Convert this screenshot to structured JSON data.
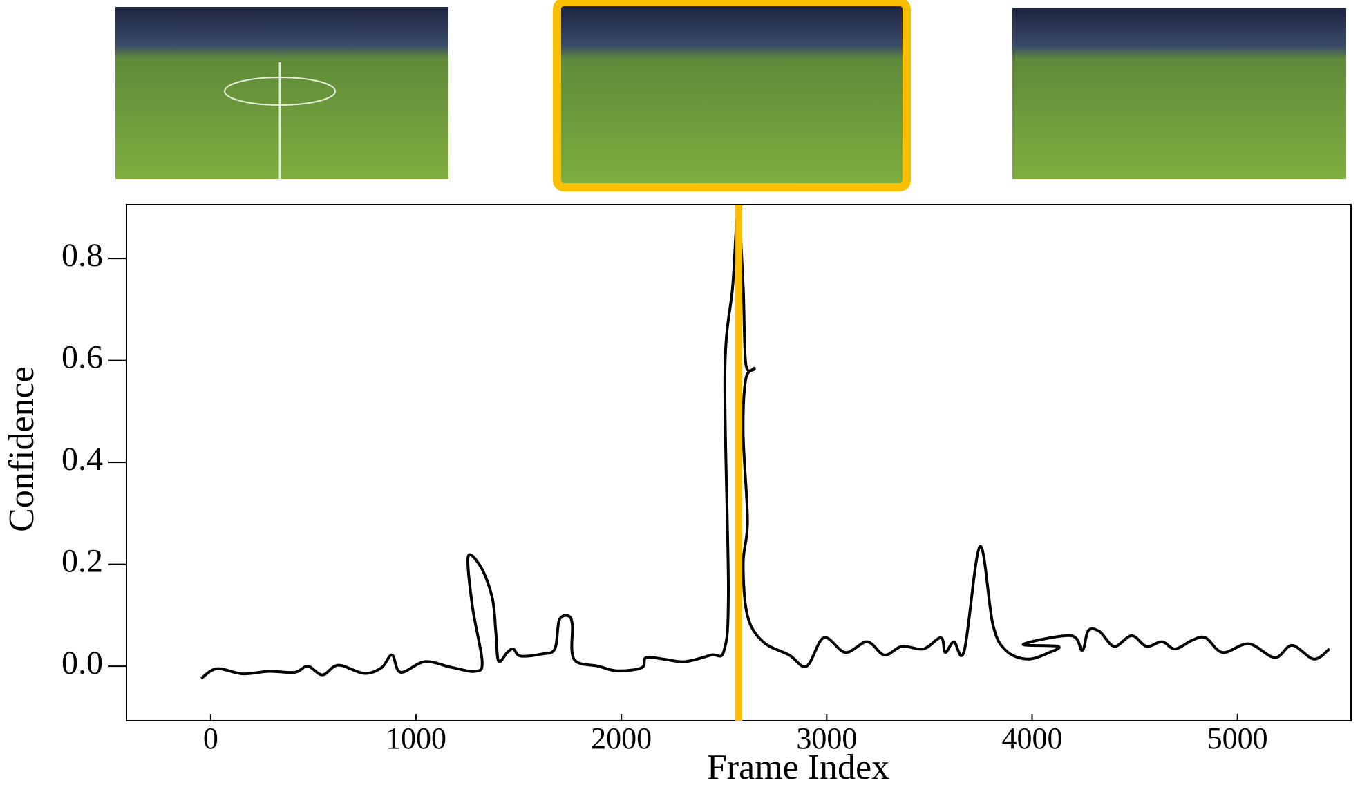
{
  "chart_data": {
    "type": "line",
    "x_label": "Frame Index",
    "y_label": "Confidence",
    "xlim": [
      -410,
      5553
    ],
    "ylim": [
      -0.107,
      0.906
    ],
    "xticks": [
      0,
      1000,
      2000,
      3000,
      4000,
      5000
    ],
    "yticks": [
      {
        "value": 0,
        "label": "0.0"
      },
      0.2,
      0.4,
      0.6,
      0.8
    ],
    "highlight_x": 2572,
    "highlight_color": "#fbbf00",
    "series": [
      {
        "name": "Confidence",
        "color": "#000000",
        "x": [
          -46,
          30,
          156,
          283,
          410,
          473,
          545,
          621,
          747,
          832,
          883,
          925,
          1043,
          1170,
          1288,
          1322,
          1275,
          1254,
          1318,
          1372,
          1389,
          1402,
          1444,
          1474,
          1508,
          1613,
          1676,
          1697,
          1740,
          1761,
          1769,
          1888,
          1981,
          2099,
          2120,
          2204,
          2310,
          2437,
          2500,
          2521,
          2504,
          2542,
          2568,
          2593,
          2606,
          2648,
          2606,
          2593,
          2614,
          2593,
          2614,
          2690,
          2817,
          2902,
          2986,
          3091,
          3197,
          3281,
          3366,
          3471,
          3556,
          3577,
          3619,
          3670,
          3746,
          3809,
          3872,
          3978,
          4084,
          4126,
          3957,
          4189,
          4244,
          4274,
          4329,
          4400,
          4485,
          4557,
          4633,
          4696,
          4780,
          4844,
          4928,
          5055,
          5182,
          5266,
          5372,
          5448
        ],
        "values": [
          -0.024,
          -0.005,
          -0.015,
          -0.01,
          -0.012,
          0,
          -0.017,
          0.002,
          -0.014,
          -0.003,
          0.022,
          -0.012,
          0.009,
          -0.002,
          -0.01,
          0.01,
          0.116,
          0.215,
          0.193,
          0.133,
          0.065,
          0.01,
          0.027,
          0.034,
          0.02,
          0.024,
          0.034,
          0.09,
          0.099,
          0.082,
          0.014,
          0,
          -0.009,
          -0.003,
          0.017,
          0.014,
          0.009,
          0.022,
          0.031,
          0.15,
          0.576,
          0.746,
          0.891,
          0.746,
          0.593,
          0.584,
          0.564,
          0.457,
          0.286,
          0.201,
          0.099,
          0.048,
          0.022,
          0,
          0.056,
          0.027,
          0.048,
          0.022,
          0.039,
          0.034,
          0.056,
          0.027,
          0.048,
          0.031,
          0.235,
          0.082,
          0.031,
          0.014,
          0.027,
          0.039,
          0.043,
          0.06,
          0.031,
          0.07,
          0.068,
          0.039,
          0.06,
          0.039,
          0.048,
          0.034,
          0.051,
          0.056,
          0.027,
          0.044,
          0.017,
          0.041,
          0.014,
          0.034
        ]
      }
    ]
  }
}
